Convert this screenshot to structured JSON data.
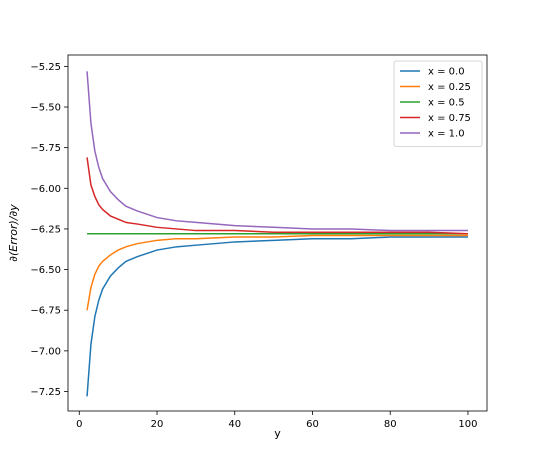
{
  "chart_data": {
    "type": "line",
    "title": "",
    "xlabel": "y",
    "ylabel": "∂(Error)/∂y",
    "xlim": [
      -2.9,
      104.9
    ],
    "ylim": [
      -7.37,
      -5.18
    ],
    "xticks": [
      0,
      20,
      40,
      60,
      80,
      100
    ],
    "xtick_labels": [
      "0",
      "20",
      "40",
      "60",
      "80",
      "100"
    ],
    "yticks": [
      -7.25,
      -7.0,
      -6.75,
      -6.5,
      -6.25,
      -6.0,
      -5.75,
      -5.5,
      -5.25
    ],
    "ytick_labels": [
      "−7.25",
      "−7.00",
      "−6.75",
      "−6.50",
      "−6.25",
      "−6.00",
      "−5.75",
      "−5.50",
      "−5.25"
    ],
    "grid": false,
    "legend_position": "top-right",
    "x": [
      2,
      3,
      4,
      5,
      6,
      8,
      10,
      12,
      15,
      20,
      25,
      30,
      40,
      50,
      60,
      70,
      80,
      90,
      100
    ],
    "series": [
      {
        "name": "x = 0.0",
        "color": "#1f77b4",
        "values": [
          -7.28,
          -6.96,
          -6.79,
          -6.69,
          -6.62,
          -6.54,
          -6.49,
          -6.45,
          -6.42,
          -6.38,
          -6.36,
          -6.35,
          -6.33,
          -6.32,
          -6.31,
          -6.31,
          -6.3,
          -6.3,
          -6.3
        ]
      },
      {
        "name": "x = 0.25",
        "color": "#ff7f0e",
        "values": [
          -6.75,
          -6.61,
          -6.53,
          -6.48,
          -6.45,
          -6.41,
          -6.38,
          -6.36,
          -6.34,
          -6.32,
          -6.31,
          -6.31,
          -6.3,
          -6.3,
          -6.29,
          -6.29,
          -6.29,
          -6.29,
          -6.29
        ]
      },
      {
        "name": "x = 0.5",
        "color": "#2ca02c",
        "values": [
          -6.28,
          -6.28,
          -6.28,
          -6.28,
          -6.28,
          -6.28,
          -6.28,
          -6.28,
          -6.28,
          -6.28,
          -6.28,
          -6.28,
          -6.28,
          -6.28,
          -6.28,
          -6.28,
          -6.28,
          -6.28,
          -6.28
        ]
      },
      {
        "name": "x = 0.75",
        "color": "#d62728",
        "values": [
          -5.81,
          -5.98,
          -6.05,
          -6.1,
          -6.13,
          -6.17,
          -6.19,
          -6.21,
          -6.22,
          -6.24,
          -6.25,
          -6.26,
          -6.26,
          -6.27,
          -6.27,
          -6.27,
          -6.27,
          -6.27,
          -6.28
        ]
      },
      {
        "name": "x = 1.0",
        "color": "#9467bd",
        "values": [
          -5.28,
          -5.6,
          -5.77,
          -5.87,
          -5.94,
          -6.02,
          -6.07,
          -6.11,
          -6.14,
          -6.18,
          -6.2,
          -6.21,
          -6.23,
          -6.24,
          -6.25,
          -6.25,
          -6.26,
          -6.26,
          -6.26
        ]
      }
    ]
  }
}
